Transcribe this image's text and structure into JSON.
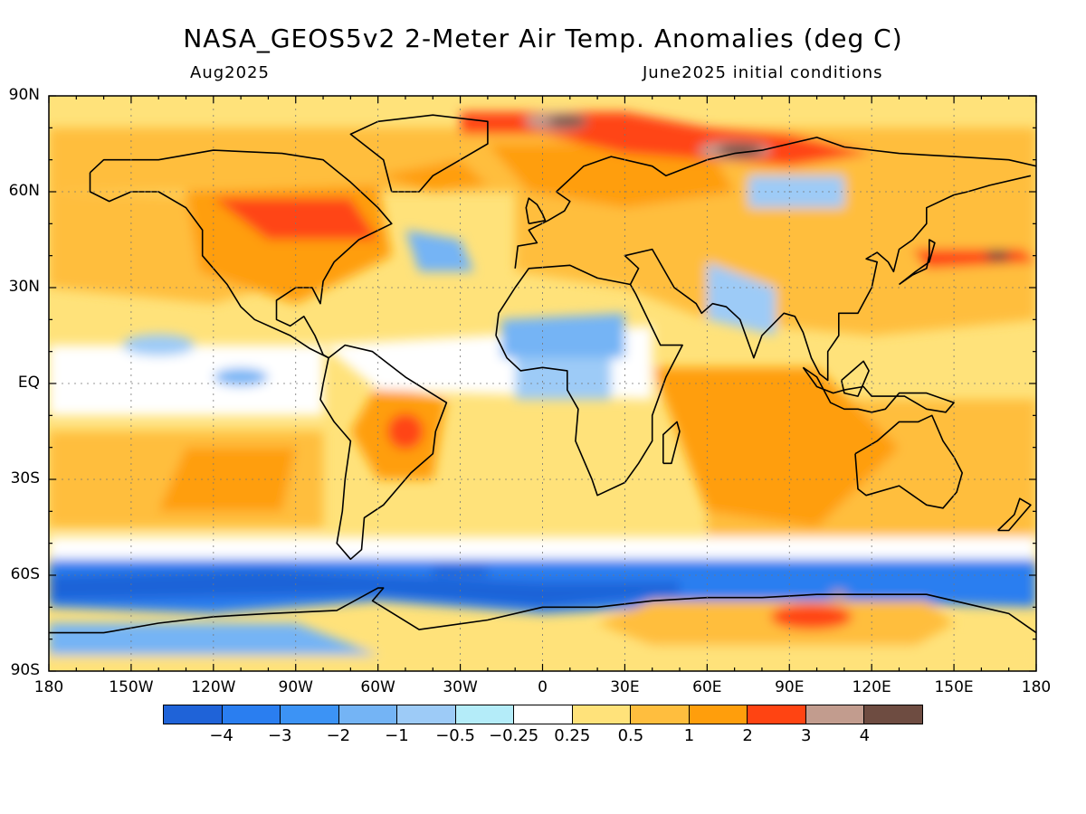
{
  "header": {
    "title": "NASA_GEOS5v2 2-Meter Air Temp. Anomalies (deg C)",
    "valid_month": "Aug2025",
    "init_conditions": "June2025 initial conditions"
  },
  "map": {
    "projection": "equirectangular",
    "lat_labels": [
      "90N",
      "60N",
      "30N",
      "EQ",
      "30S",
      "60S",
      "90S"
    ],
    "lon_labels": [
      "180",
      "150W",
      "120W",
      "90W",
      "60W",
      "30W",
      "0",
      "30E",
      "60E",
      "90E",
      "120E",
      "150E",
      "180"
    ],
    "background_color": "#ffe27a",
    "notable_features": [
      "strong cold anomaly band over Southern Ocean",
      "warm anomalies over East Antarctica",
      "warm anomalies over Arctic, Barents Sea and northern Eurasia",
      "cool anomalies over the Sahel and equatorial Atlantic"
    ]
  },
  "colorbar": {
    "colors": [
      "#1f63d8",
      "#2a7ef0",
      "#3c93f5",
      "#74b4f5",
      "#9dcbf7",
      "#b4ecf9",
      "#ffffff",
      "#ffe27a",
      "#ffbe3e",
      "#ff9e0c",
      "#ff4412",
      "#c29c8e",
      "#6e4c41"
    ],
    "tick_labels": [
      "-4",
      "-3",
      "-2",
      "-1",
      "-0.5",
      "-0.25",
      "0.25",
      "0.5",
      "1",
      "2",
      "3",
      "4"
    ]
  }
}
